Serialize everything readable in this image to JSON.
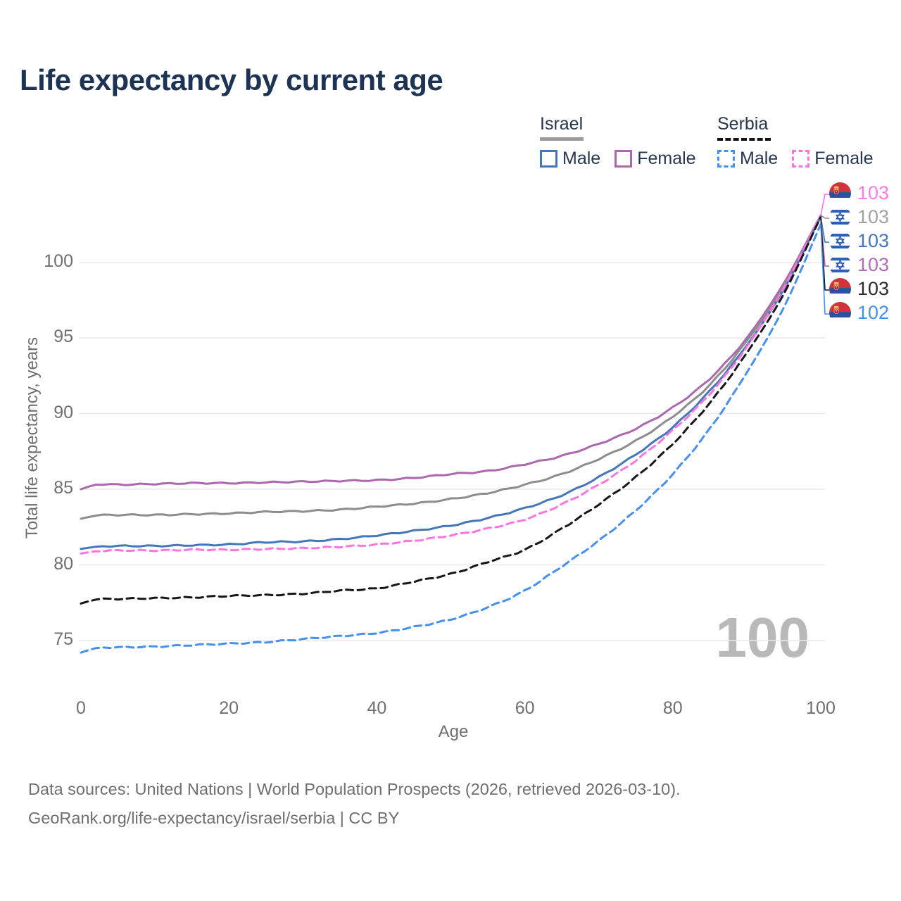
{
  "title": "Life expectancy by current age",
  "watermark": "100",
  "legend": {
    "groups": [
      {
        "country": "Israel",
        "line_style": "solid",
        "underline_color": "#9b9b9b",
        "items": [
          {
            "label": "Male",
            "color": "#4377ba",
            "style": "solid"
          },
          {
            "label": "Female",
            "color": "#ac68ae",
            "style": "solid"
          }
        ]
      },
      {
        "country": "Serbia",
        "line_style": "dashed",
        "underline_color": "#141414",
        "items": [
          {
            "label": "Male",
            "color": "#4690f2",
            "style": "dashed"
          },
          {
            "label": "Female",
            "color": "#ff74e0",
            "style": "dashed"
          }
        ]
      }
    ]
  },
  "axes": {
    "y": {
      "title": "Total life expectancy, years",
      "ticks": [
        75,
        80,
        85,
        90,
        95,
        100
      ],
      "range": [
        73,
        104.5
      ]
    },
    "x": {
      "title": "Age",
      "ticks": [
        0,
        20,
        40,
        60,
        80,
        100
      ],
      "range": [
        0,
        100
      ]
    }
  },
  "end_labels": [
    {
      "flag": "serbia",
      "series": "Serbia Female",
      "value": "103",
      "color": "#ff7ce2"
    },
    {
      "flag": "israel",
      "series": "Israel Both sexes",
      "value": "103",
      "color": "#a2a2a2"
    },
    {
      "flag": "israel",
      "series": "Israel Male",
      "value": "103",
      "color": "#4377ba"
    },
    {
      "flag": "israel",
      "series": "Israel Female",
      "value": "103",
      "color": "#b06fb5"
    },
    {
      "flag": "serbia",
      "series": "Serbia Both sexes",
      "value": "103",
      "color": "#2b2b2b"
    },
    {
      "flag": "serbia",
      "series": "Serbia Male",
      "value": "102",
      "color": "#4690f2"
    }
  ],
  "footer": {
    "line1": "Data sources: United Nations | World Population Prospects (2026, retrieved 2026-03-10).",
    "line2": "GeoRank.org/life-expectancy/israel/serbia | CC BY"
  },
  "chart_data": {
    "type": "line",
    "title": "Life expectancy by current age",
    "xlabel": "Age",
    "ylabel": "Total life expectancy, years",
    "xlim": [
      0,
      100
    ],
    "ylim": [
      73,
      104.5
    ],
    "grid": "horizontal",
    "legend_position": "top-right",
    "x": [
      0,
      2,
      5,
      10,
      15,
      20,
      25,
      30,
      35,
      40,
      45,
      50,
      55,
      60,
      65,
      70,
      75,
      80,
      85,
      90,
      95,
      100
    ],
    "series": [
      {
        "name": "Israel Female",
        "country": "Israel",
        "sex": "female",
        "style": "solid",
        "color": "#ac68ae",
        "values": [
          85.0,
          85.3,
          85.3,
          85.35,
          85.4,
          85.4,
          85.45,
          85.5,
          85.55,
          85.6,
          85.75,
          86.0,
          86.2,
          86.65,
          87.2,
          88.0,
          89.0,
          90.4,
          92.3,
          95.0,
          98.6,
          103.1
        ]
      },
      {
        "name": "Israel Both sexes",
        "country": "Israel",
        "sex": "both",
        "style": "solid",
        "color": "#8d8d8d",
        "values": [
          83.05,
          83.25,
          83.3,
          83.3,
          83.35,
          83.4,
          83.5,
          83.55,
          83.65,
          83.85,
          84.05,
          84.35,
          84.75,
          85.3,
          86.0,
          87.0,
          88.2,
          89.8,
          91.9,
          94.8,
          98.4,
          103.1
        ]
      },
      {
        "name": "Israel Male",
        "country": "Israel",
        "sex": "male",
        "style": "solid",
        "color": "#4377ba",
        "values": [
          81.05,
          81.2,
          81.25,
          81.25,
          81.3,
          81.35,
          81.5,
          81.55,
          81.7,
          81.95,
          82.25,
          82.6,
          83.1,
          83.75,
          84.6,
          85.8,
          87.3,
          89.1,
          91.5,
          94.5,
          98.2,
          103.0
        ]
      },
      {
        "name": "Serbia Female",
        "country": "Serbia",
        "sex": "female",
        "style": "dashed",
        "color": "#ff74e0",
        "values": [
          80.75,
          80.9,
          80.95,
          80.95,
          81.0,
          81.0,
          81.05,
          81.1,
          81.2,
          81.35,
          81.6,
          81.95,
          82.4,
          83.0,
          84.0,
          85.3,
          86.9,
          88.9,
          91.3,
          94.4,
          98.3,
          103.1
        ]
      },
      {
        "name": "Serbia Both sexes",
        "country": "Serbia",
        "sex": "both",
        "style": "dashed",
        "color": "#161616",
        "values": [
          77.45,
          77.7,
          77.75,
          77.8,
          77.85,
          77.95,
          78.0,
          78.1,
          78.3,
          78.45,
          78.9,
          79.4,
          80.2,
          81.0,
          82.4,
          84.0,
          85.8,
          88.0,
          90.7,
          94.0,
          97.9,
          103.0
        ]
      },
      {
        "name": "Serbia Male",
        "country": "Serbia",
        "sex": "male",
        "style": "dashed",
        "color": "#4690f2",
        "values": [
          74.2,
          74.5,
          74.55,
          74.6,
          74.7,
          74.8,
          74.9,
          75.1,
          75.3,
          75.5,
          75.9,
          76.4,
          77.2,
          78.3,
          79.9,
          81.6,
          83.6,
          86.0,
          89.0,
          92.7,
          97.0,
          102.5
        ]
      }
    ]
  }
}
